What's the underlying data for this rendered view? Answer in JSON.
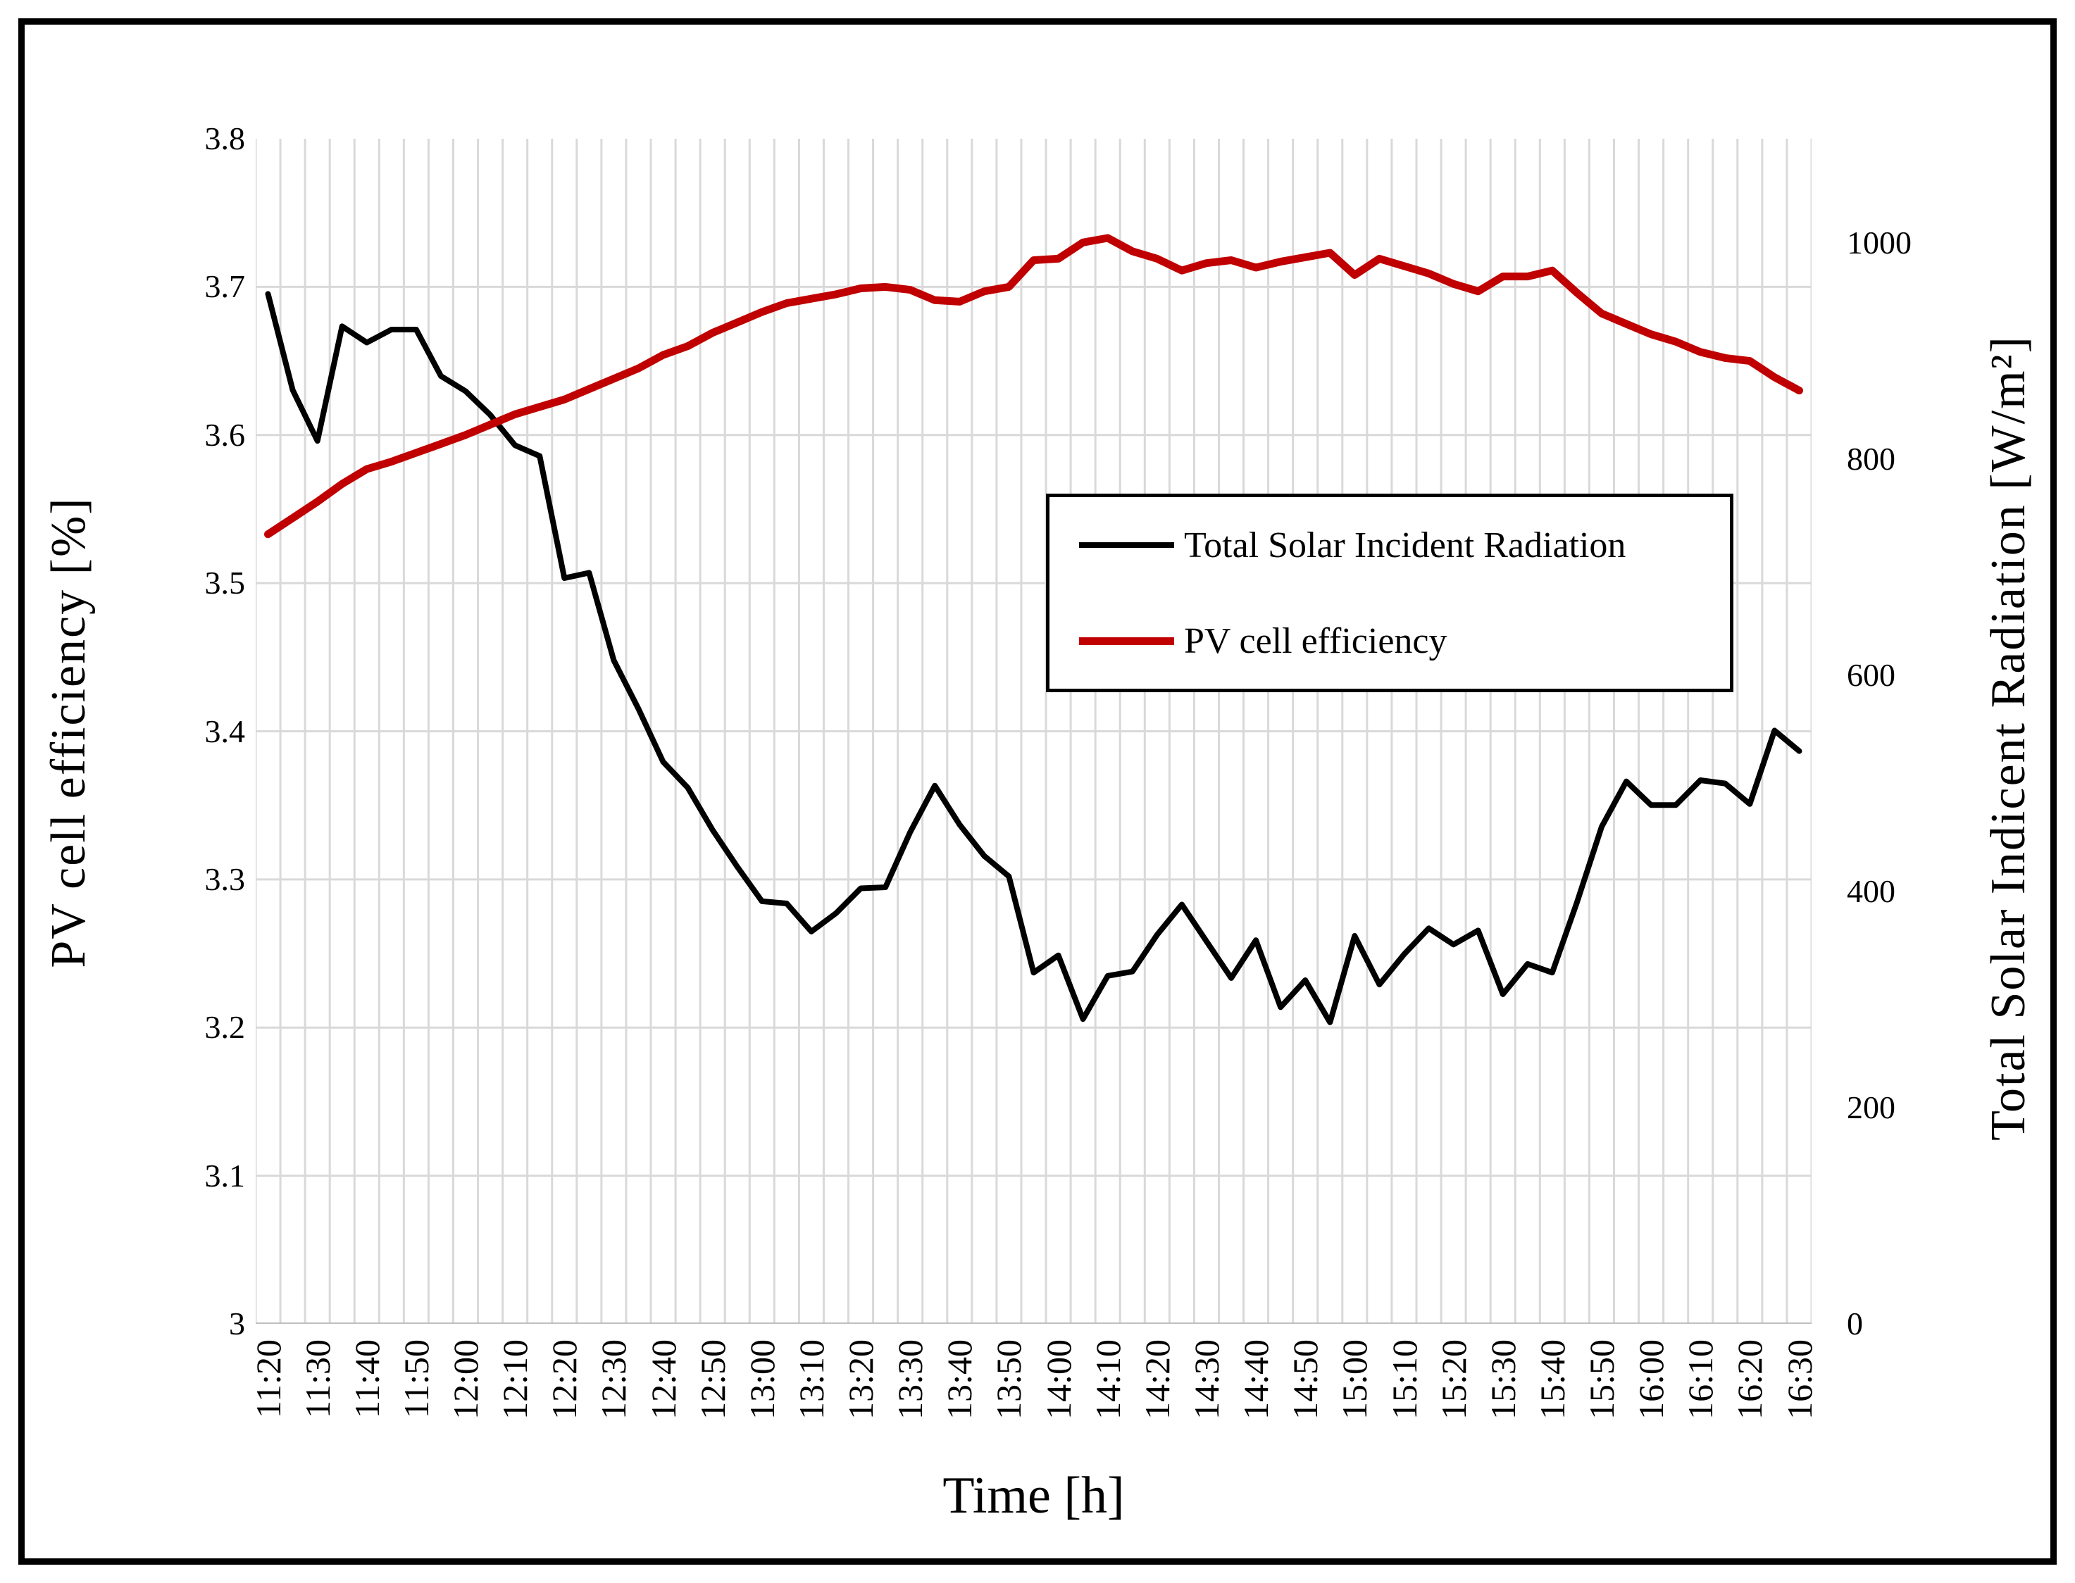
{
  "figure": {
    "background": "#ffffff",
    "border_color": "#000000"
  },
  "chart_data": {
    "type": "line",
    "title": "",
    "x_axis": {
      "label": "Time [h]",
      "label_every": 2
    },
    "x_categories": [
      "11:20",
      "11:25",
      "11:30",
      "11:35",
      "11:40",
      "11:45",
      "11:50",
      "11:55",
      "12:00",
      "12:05",
      "12:10",
      "12:15",
      "12:20",
      "12:25",
      "12:30",
      "12:35",
      "12:40",
      "12:45",
      "12:50",
      "12:55",
      "13:00",
      "13:05",
      "13:10",
      "13:15",
      "13:20",
      "13:25",
      "13:30",
      "13:35",
      "13:40",
      "13:45",
      "13:50",
      "13:55",
      "14:00",
      "14:05",
      "14:10",
      "14:15",
      "14:20",
      "14:25",
      "14:30",
      "14:35",
      "14:40",
      "14:45",
      "14:50",
      "14:55",
      "15:00",
      "15:05",
      "15:10",
      "15:15",
      "15:20",
      "15:25",
      "15:30",
      "15:35",
      "15:40",
      "15:45",
      "15:50",
      "15:55",
      "16:00",
      "16:05",
      "16:10",
      "16:15",
      "16:20",
      "16:25",
      "16:30"
    ],
    "left_axis": {
      "label": "PV cell efficiency [%]",
      "min": 3,
      "max": 3.8,
      "tick_values": [
        3,
        3.1,
        3.2,
        3.3,
        3.4,
        3.5,
        3.6,
        3.7,
        3.8
      ],
      "tick_labels": [
        "3",
        "3.1",
        "3.2",
        "3.3",
        "3.4",
        "3.5",
        "3.6",
        "3.7",
        "3.8"
      ],
      "gridline_values": [
        3,
        3.1,
        3.2,
        3.3,
        3.4,
        3.5,
        3.6,
        3.7
      ]
    },
    "right_axis": {
      "label": "Total Solar Indicent  Radiation [W/m²]",
      "min": 0,
      "max_tick": 1000,
      "value_at_top": 1096.6,
      "tick_values": [
        0,
        200,
        400,
        600,
        800,
        1000
      ],
      "tick_labels": [
        "0",
        "200",
        "400",
        "600",
        "800",
        "1000"
      ]
    },
    "grid": {
      "color": "#d9d9d9",
      "width": 3,
      "bottom_color": "#bfbfbf",
      "bottom_width": 4
    },
    "series": [
      {
        "name": "Total Solar Incident Radiation",
        "axis": "right",
        "color": "#000000",
        "width": 8,
        "values": [
          953,
          864,
          817,
          923,
          908,
          920,
          920,
          877,
          863,
          841,
          813,
          803,
          690,
          695,
          614,
          569,
          520,
          496,
          457,
          423,
          391,
          389,
          363,
          380,
          403,
          404,
          455,
          498,
          462,
          433,
          414,
          325,
          341,
          282,
          322,
          326,
          360,
          388,
          354,
          320,
          355,
          293,
          318,
          279,
          359,
          314,
          342,
          366,
          351,
          364,
          305,
          333,
          325,
          390,
          460,
          502,
          480,
          480,
          503,
          500,
          481,
          549,
          530
        ]
      },
      {
        "name": "PV cell efficiency",
        "axis": "left",
        "color": "#c00000",
        "width": 11,
        "values": [
          3.533,
          3.544,
          3.555,
          3.567,
          3.577,
          3.582,
          3.588,
          3.594,
          3.6,
          3.607,
          3.614,
          3.619,
          3.624,
          3.631,
          3.638,
          3.645,
          3.654,
          3.66,
          3.669,
          3.676,
          3.683,
          3.689,
          3.692,
          3.695,
          3.699,
          3.7,
          3.698,
          3.691,
          3.69,
          3.697,
          3.7,
          3.718,
          3.719,
          3.73,
          3.733,
          3.724,
          3.719,
          3.711,
          3.716,
          3.718,
          3.713,
          3.717,
          3.72,
          3.723,
          3.708,
          3.719,
          3.714,
          3.709,
          3.702,
          3.697,
          3.707,
          3.707,
          3.711,
          3.696,
          3.682,
          3.675,
          3.668,
          3.663,
          3.656,
          3.652,
          3.65,
          3.639,
          3.63
        ]
      }
    ],
    "legend": {
      "position": "middle-right",
      "items": [
        "Total Solar Incident Radiation",
        "PV cell efficiency"
      ]
    }
  }
}
